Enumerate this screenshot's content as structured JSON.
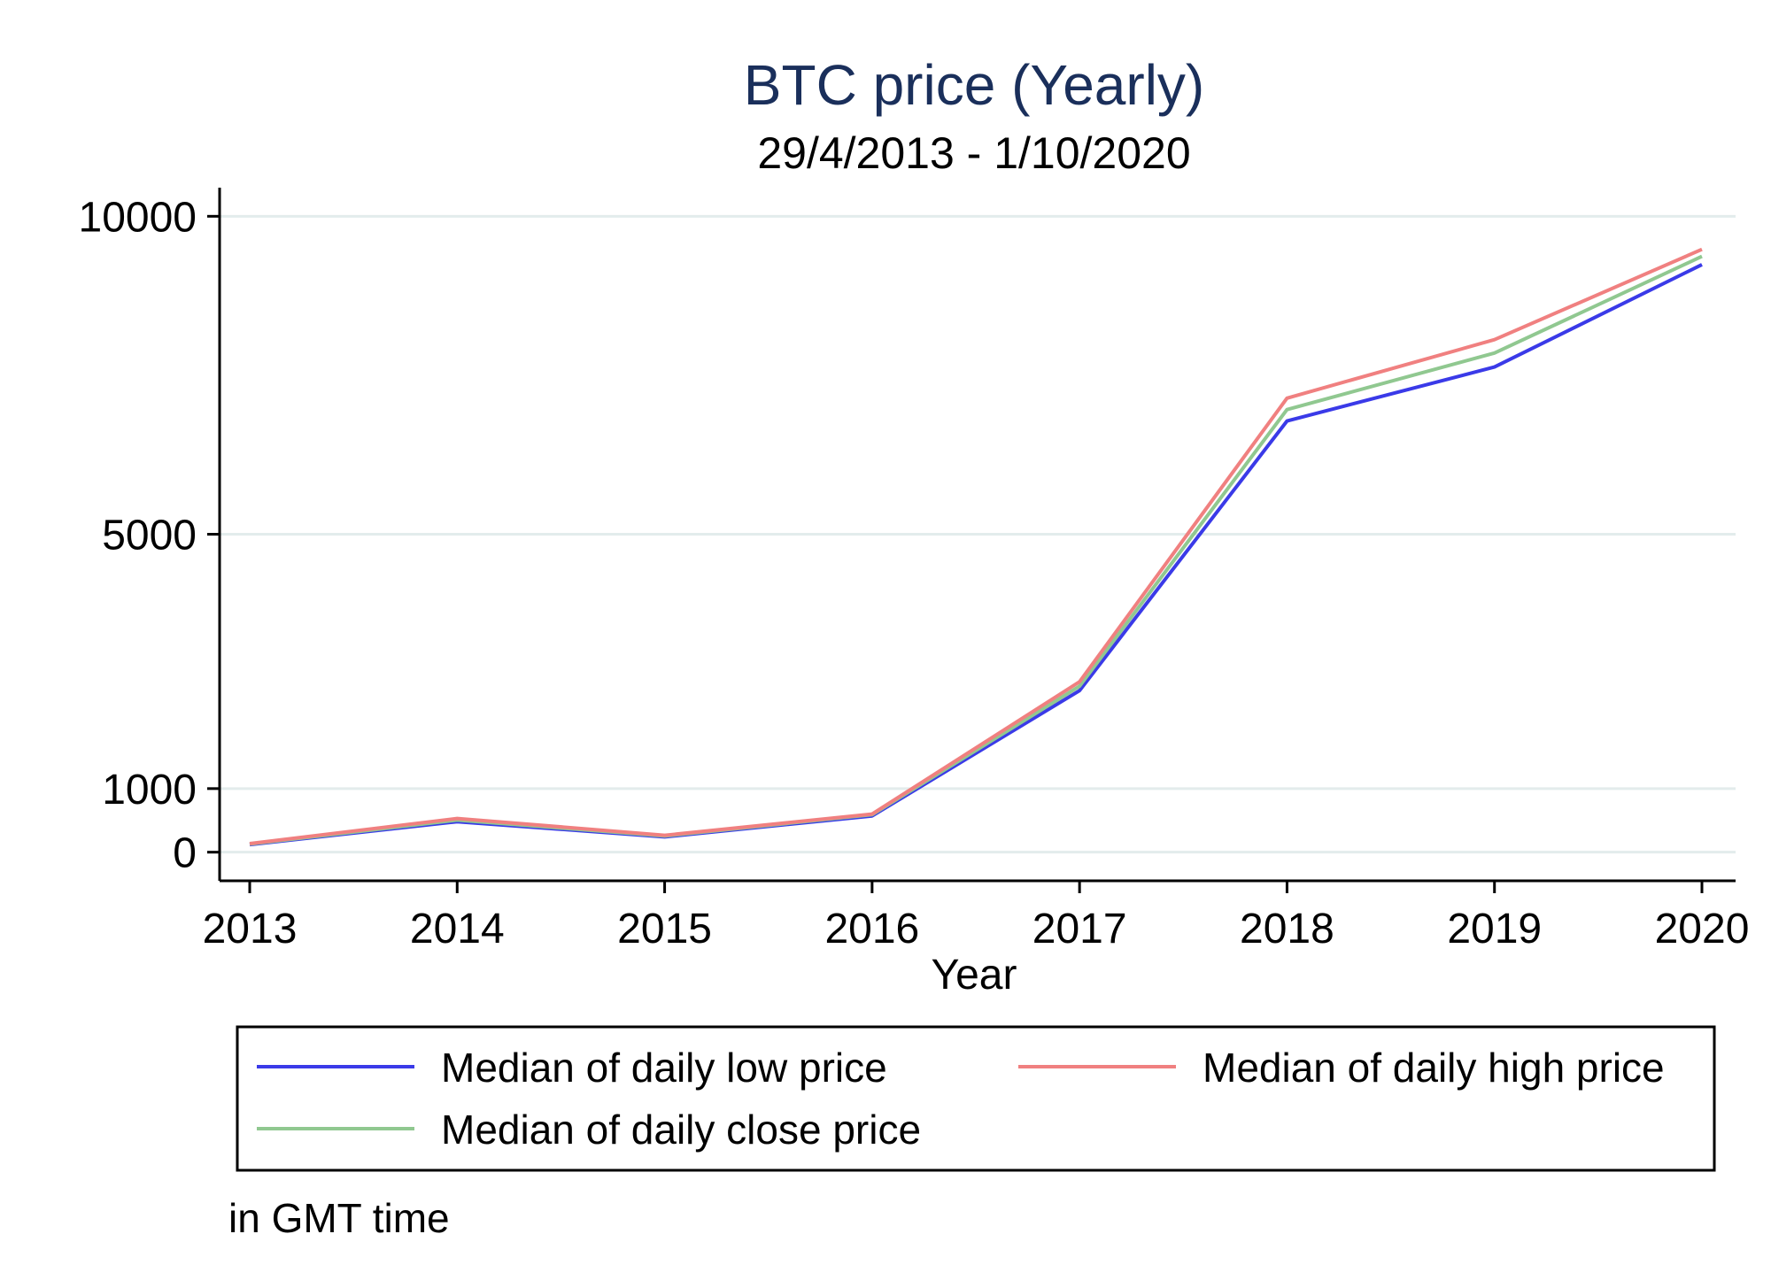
{
  "chart_data": {
    "type": "line",
    "title": "BTC price (Yearly)",
    "subtitle": "29/4/2013 - 1/10/2020",
    "xlabel": "Year",
    "ylabel": "",
    "x": [
      2013,
      2014,
      2015,
      2016,
      2017,
      2018,
      2019,
      2020
    ],
    "x_tick_labels": [
      "2013",
      "2014",
      "2015",
      "2016",
      "2017",
      "2018",
      "2019",
      "2020"
    ],
    "y_ticks": [
      0,
      1000,
      5000,
      10000
    ],
    "y_tick_labels": [
      "0",
      "1000",
      "5000",
      "10000"
    ],
    "ylim": [
      -450,
      10450
    ],
    "grid": true,
    "legend_position": "bottom",
    "series": [
      {
        "name": "Median of daily low price",
        "color": "#3a3ae8",
        "values": [
          120,
          480,
          240,
          570,
          2540,
          6780,
          7630,
          9240
        ]
      },
      {
        "name": "Median of daily high price",
        "color": "#f08080",
        "values": [
          135,
          530,
          265,
          600,
          2680,
          7140,
          8060,
          9480
        ]
      },
      {
        "name": "Median of daily close price",
        "color": "#90c890",
        "values": [
          128,
          505,
          255,
          590,
          2610,
          6960,
          7850,
          9370
        ]
      }
    ],
    "note": "in GMT time"
  }
}
